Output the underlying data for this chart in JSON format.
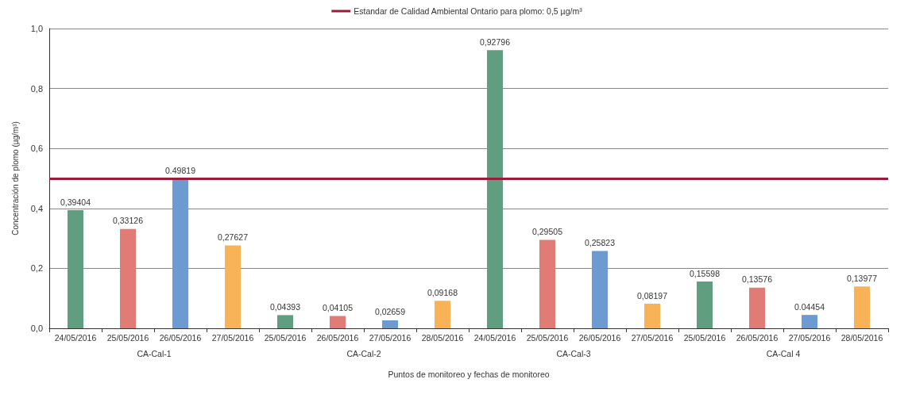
{
  "chart_data": {
    "type": "bar",
    "xlabel": "Puntos de monitoreo y fechas de monitoreo",
    "ylabel": "Concentración de plomo (µg/m³)",
    "categories": [
      "24/05/2016",
      "25/05/2016",
      "26/05/2016",
      "27/05/2016",
      "25/05/2016",
      "26/05/2016",
      "27/05/2016",
      "28/05/2016",
      "24/05/2016",
      "25/05/2016",
      "26/05/2016",
      "27/05/2016",
      "25/05/2016",
      "26/05/2016",
      "27/05/2016",
      "28/05/2016"
    ],
    "values": [
      0.39404,
      0.33126,
      0.49819,
      0.27627,
      0.04393,
      0.04105,
      0.02659,
      0.09168,
      0.92796,
      0.29505,
      0.25823,
      0.08197,
      0.15598,
      0.13576,
      0.04454,
      0.13977
    ],
    "colors": [
      "#5f9e7f",
      "#e07b75",
      "#6b9bd1",
      "#f8b258",
      "#5f9e7f",
      "#e07b75",
      "#6b9bd1",
      "#f8b258",
      "#5f9e7f",
      "#e07b75",
      "#6b9bd1",
      "#f8b258",
      "#5f9e7f",
      "#e07b75",
      "#6b9bd1",
      "#f8b258"
    ],
    "value_labels": [
      "0,39404",
      "0,33126",
      "0.49819",
      "0,27627",
      "0,04393",
      "0,04105",
      "0,02659",
      "0,09168",
      "0,92796",
      "0,29505",
      "0,25823",
      "0,08197",
      "0,15598",
      "0,13576",
      "0.04454",
      "0,13977"
    ],
    "annotations": [
      "CA-Cal-1",
      "CA-Cal-2",
      "CA-Cal-3",
      "CA-Cal 4"
    ],
    "ylim": [
      0,
      1
    ],
    "yticks": [
      {
        "value": 0,
        "label": "0,0"
      },
      {
        "value": 0.2,
        "label": "0,2"
      },
      {
        "value": 0.4,
        "label": "0,4"
      },
      {
        "value": 0.6,
        "label": "0,6"
      },
      {
        "value": 0.8,
        "label": "0,8"
      },
      {
        "value": 1,
        "label": "1,0"
      }
    ],
    "ref_lines": [
      {
        "axis": "y",
        "value": 0.5,
        "label": "Estandar de Calidad Ambiental Ontario para plomo: 0,5 µg/m³",
        "color": "#9b1b3a"
      }
    ],
    "grid": "y",
    "legend": "top"
  }
}
